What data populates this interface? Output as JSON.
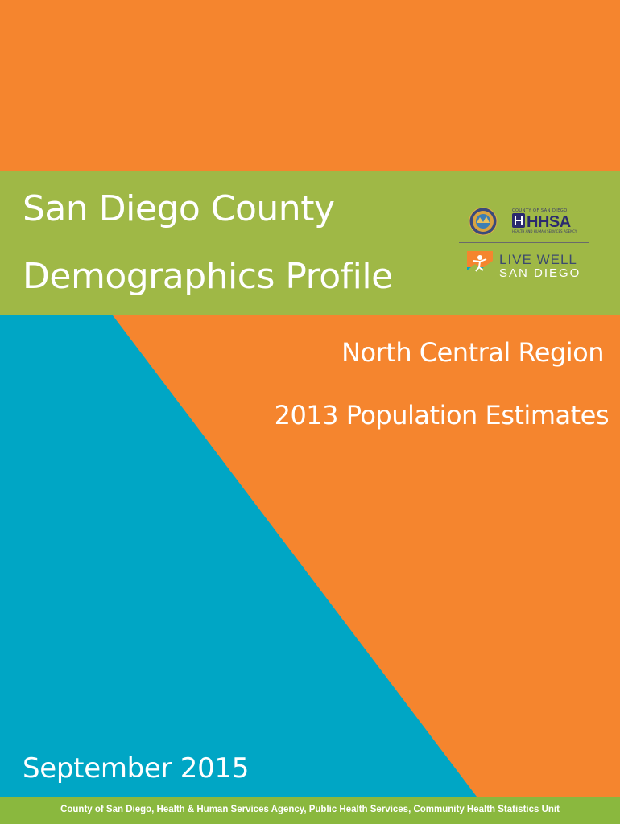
{
  "cover": {
    "title_line1": "San Diego County",
    "title_line2": "Demographics Profile",
    "region": "North Central Region",
    "estimates": "2013 Population Estimates",
    "date": "September 2015",
    "footer": "County of San Diego, Health & Human Services Agency, Public Health Services, Community Health Statistics Unit"
  },
  "logos": {
    "hhsa_top": "COUNTY OF SAN DIEGO",
    "hhsa": "HHSA",
    "hhsa_bottom": "HEALTH AND HUMAN SERVICES AGENCY",
    "live_well_line1": "LIVE WELL",
    "live_well_line2": "SAN DIEGO"
  },
  "colors": {
    "orange": "#f5852e",
    "green": "#9fb846",
    "teal": "#00a6c5",
    "footer_green": "#8ab83e"
  }
}
